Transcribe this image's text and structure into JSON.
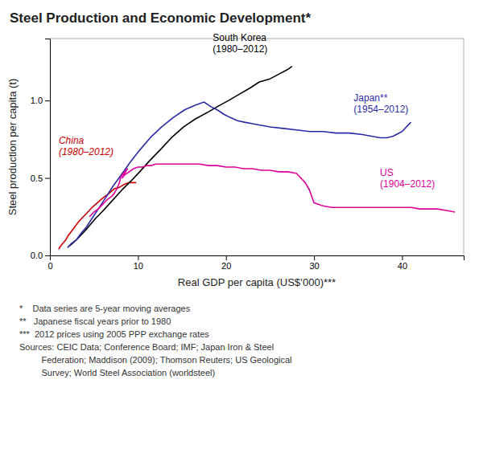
{
  "chart_data": {
    "type": "line",
    "title": "Steel Production and Economic Development*",
    "x_label": "Real GDP per capita (US$’000)***",
    "y_label": "Steel production per capita (t)",
    "xlim": [
      0,
      47
    ],
    "ylim": [
      0,
      1.4
    ],
    "xticks": [
      0,
      10,
      20,
      30,
      40
    ],
    "yticks": [
      {
        "value": 0.0,
        "label": "0.0"
      },
      0.5,
      {
        "value": 1.0,
        "label": "1.0"
      }
    ],
    "series": [
      {
        "color": "#cc0000",
        "x": [
          1.0,
          1.2,
          1.5,
          1.8,
          2.1,
          2.5,
          2.9,
          3.3,
          3.8,
          4.3,
          4.8,
          5.4,
          6.0,
          6.7,
          7.3,
          7.9,
          8.5,
          9.0,
          9.5,
          9.8
        ],
        "values": [
          0.04,
          0.06,
          0.08,
          0.1,
          0.13,
          0.16,
          0.19,
          0.22,
          0.25,
          0.28,
          0.31,
          0.34,
          0.37,
          0.4,
          0.43,
          0.44,
          0.46,
          0.47,
          0.47,
          0.47
        ]
      },
      {
        "color": "#000000",
        "x": [
          2.2,
          2.6,
          3.0,
          3.5,
          4.0,
          4.6,
          5.2,
          5.9,
          6.7,
          7.5,
          8.3,
          9.2,
          10.2,
          11.3,
          12.5,
          13.8,
          15.2,
          16.5,
          17.8,
          19.0,
          20.3,
          21.5,
          22.7,
          23.8,
          25.0,
          26.0,
          27.0,
          27.5
        ],
        "values": [
          0.06,
          0.08,
          0.1,
          0.13,
          0.16,
          0.2,
          0.24,
          0.28,
          0.33,
          0.38,
          0.43,
          0.48,
          0.54,
          0.61,
          0.68,
          0.76,
          0.83,
          0.88,
          0.92,
          0.96,
          1.0,
          1.04,
          1.08,
          1.12,
          1.14,
          1.17,
          1.2,
          1.22
        ]
      },
      {
        "color": "#2b2baa",
        "x": [
          2.0,
          2.5,
          3.0,
          3.5,
          4.1,
          4.8,
          5.5,
          6.3,
          7.2,
          8.1,
          9.1,
          10.2,
          11.4,
          12.7,
          14.0,
          15.3,
          16.5,
          17.5,
          18.3,
          19.0,
          19.8,
          20.5,
          21.3,
          22.1,
          23.0,
          24.0,
          25.0,
          26.5,
          28.0,
          29.5,
          31.0,
          32.5,
          34.0,
          35.5,
          36.5,
          37.5,
          38.3,
          39.0,
          40.0,
          41.0
        ],
        "values": [
          0.05,
          0.08,
          0.1,
          0.14,
          0.18,
          0.24,
          0.3,
          0.37,
          0.45,
          0.52,
          0.6,
          0.68,
          0.76,
          0.83,
          0.89,
          0.94,
          0.97,
          0.99,
          0.96,
          0.94,
          0.91,
          0.89,
          0.87,
          0.86,
          0.85,
          0.84,
          0.83,
          0.82,
          0.81,
          0.8,
          0.8,
          0.79,
          0.79,
          0.78,
          0.77,
          0.76,
          0.76,
          0.77,
          0.8,
          0.86
        ]
      },
      {
        "color": "#dd0099",
        "x": [
          4.5,
          5.0,
          5.5,
          6.0,
          6.5,
          7.0,
          7.3,
          7.6,
          7.9,
          8.0,
          8.2,
          8.5,
          8.8,
          8.5,
          8.2,
          8.5,
          9.0,
          9.5,
          10.0,
          10.5,
          11.0,
          11.5,
          12.0,
          13.0,
          14.0,
          15.0,
          16.0,
          17.0,
          18.0,
          19.0,
          20.0,
          21.0,
          22.0,
          23.0,
          24.0,
          25.0,
          26.0,
          27.0,
          28.0,
          29.0,
          29.5,
          30.0,
          31.0,
          32.0,
          33.0,
          34.0,
          35.0,
          36.0,
          37.0,
          38.0,
          39.0,
          40.0,
          41.0,
          42.0,
          43.0,
          44.0,
          45.0,
          46.0
        ],
        "values": [
          0.25,
          0.28,
          0.3,
          0.33,
          0.36,
          0.38,
          0.4,
          0.43,
          0.47,
          0.5,
          0.52,
          0.54,
          0.56,
          0.53,
          0.5,
          0.52,
          0.54,
          0.56,
          0.57,
          0.57,
          0.58,
          0.58,
          0.59,
          0.59,
          0.59,
          0.59,
          0.59,
          0.59,
          0.58,
          0.58,
          0.57,
          0.57,
          0.56,
          0.56,
          0.55,
          0.55,
          0.54,
          0.54,
          0.53,
          0.47,
          0.42,
          0.34,
          0.32,
          0.31,
          0.31,
          0.31,
          0.31,
          0.31,
          0.31,
          0.31,
          0.31,
          0.31,
          0.31,
          0.3,
          0.3,
          0.3,
          0.29,
          0.28
        ]
      }
    ],
    "annotations": [
      {
        "text": "China\n(1980–2012)",
        "x": 1.0,
        "y": 0.63,
        "color": "#cc0000"
      },
      {
        "text": "South Korea\n(1980–2012)",
        "x": 18.5,
        "y": 1.29,
        "color": "#000000"
      },
      {
        "text": "Japan**\n(1954–2012)",
        "x": 34.5,
        "y": 0.98,
        "color": "#2b2baa"
      },
      {
        "text": "US\n(1904–2012)",
        "x": 37.5,
        "y": 0.5,
        "color": "#dd0099"
      }
    ],
    "footnotes": [
      "*    Data series are 5-year moving averages",
      "**   Japanese fiscal years prior to 1980",
      "***  2012 prices using 2005 PPP exchange rates",
      "Sources: CEIC Data; Conference Board; IMF; Japan Iron & Steel",
      "         Federation; Maddison (2009); Thomson Reuters; US Geological",
      "         Survey; World Steel Association (worldsteel)"
    ]
  }
}
